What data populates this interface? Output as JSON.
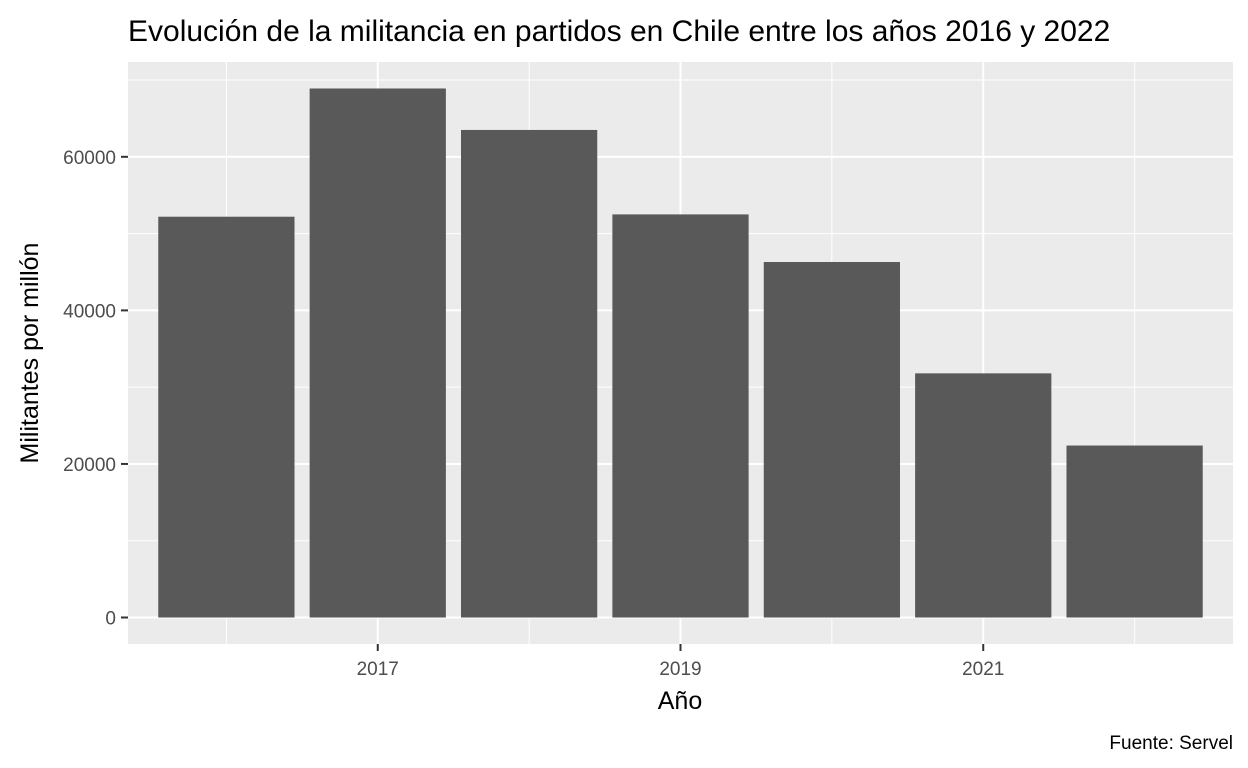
{
  "chart_data": {
    "type": "bar",
    "title": "Evolución de la militancia en partidos en Chile entre los años 2016 y 2022",
    "xlabel": "Año",
    "ylabel": "Militantes por millón",
    "caption": "Fuente: Servel",
    "categories": [
      2016,
      2017,
      2018,
      2019,
      2020,
      2021,
      2022
    ],
    "values": [
      52200,
      68900,
      63500,
      52500,
      46300,
      31800,
      22400
    ],
    "x_ticks": [
      2017,
      2019,
      2021
    ],
    "y_ticks": [
      0,
      20000,
      40000,
      60000
    ],
    "ylim": [
      -3450,
      72350
    ],
    "xlim": [
      2015.35,
      2022.65
    ],
    "grid": true,
    "legend": "none",
    "colors": {
      "bar": "#595959",
      "panel": "#ebebeb",
      "grid": "#ffffff"
    }
  }
}
